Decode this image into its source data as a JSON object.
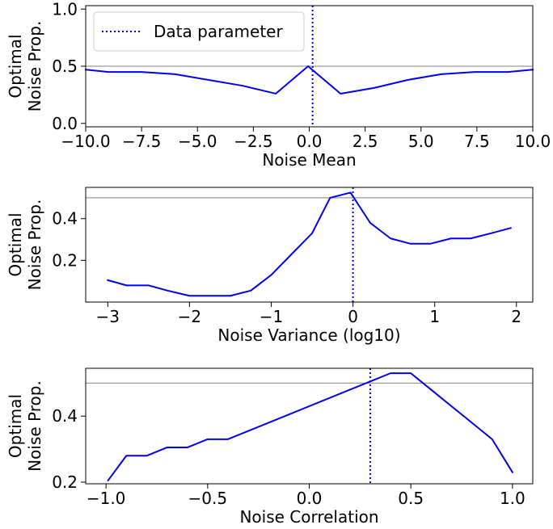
{
  "chart_data": [
    {
      "type": "line",
      "xlabel": "Noise Mean",
      "ylabel_lines": [
        "Optimal",
        "Noise Prop."
      ],
      "xlim": [
        -10,
        10
      ],
      "ylim": [
        -0.03,
        1.03
      ],
      "xticks": [
        -10,
        -7.5,
        -5,
        -2.5,
        0,
        2.5,
        5,
        7.5,
        10
      ],
      "xtick_labels": [
        "−10.0",
        "−7.5",
        "−5.0",
        "−2.5",
        "0.0",
        "2.5",
        "5.0",
        "7.5",
        "10.0"
      ],
      "yticks": [
        0,
        0.5,
        1
      ],
      "ytick_labels": [
        "0.0",
        "0.5",
        "1.0"
      ],
      "reference_hline": 0.5,
      "data_parameter_x": 0.15,
      "legend": {
        "label": "Data parameter",
        "position": "upper left"
      },
      "series": [
        {
          "color": "#0000ee",
          "x": [
            -10,
            -9,
            -7.5,
            -6,
            -4.5,
            -3,
            -1.5,
            -0.05,
            1.4,
            2.9,
            4.4,
            5.9,
            7.4,
            8.9,
            10
          ],
          "y": [
            0.47,
            0.45,
            0.45,
            0.43,
            0.38,
            0.33,
            0.26,
            0.5,
            0.26,
            0.31,
            0.38,
            0.43,
            0.45,
            0.45,
            0.47
          ]
        }
      ]
    },
    {
      "type": "line",
      "xlabel": "Noise Variance (log10)",
      "ylabel_lines": [
        "Optimal",
        "Noise Prop."
      ],
      "xlim": [
        -3.27,
        2.2
      ],
      "ylim": [
        0.0,
        0.55
      ],
      "xticks": [
        -3,
        -2,
        -1,
        0,
        1,
        2
      ],
      "xtick_labels": [
        "−3",
        "−2",
        "−1",
        "0",
        "1",
        "2"
      ],
      "yticks": [
        0.2,
        0.4
      ],
      "ytick_labels": [
        "0.2",
        "0.4"
      ],
      "reference_hline": 0.5,
      "data_parameter_x": 0.0,
      "series": [
        {
          "color": "#0000ee",
          "x": [
            -3.0,
            -2.77,
            -2.5,
            -2.27,
            -2.0,
            -1.75,
            -1.5,
            -1.25,
            -1.0,
            -0.75,
            -0.5,
            -0.28,
            -0.03,
            0.21,
            0.46,
            0.7,
            0.95,
            1.2,
            1.44,
            1.69,
            1.93
          ],
          "y": [
            0.105,
            0.08,
            0.08,
            0.055,
            0.03,
            0.03,
            0.03,
            0.055,
            0.13,
            0.23,
            0.33,
            0.5,
            0.525,
            0.38,
            0.305,
            0.28,
            0.28,
            0.305,
            0.305,
            0.33,
            0.355
          ]
        }
      ]
    },
    {
      "type": "line",
      "xlabel": "Noise Correlation",
      "ylabel_lines": [
        "Optimal",
        "Noise Prop."
      ],
      "xlim": [
        -1.1,
        1.1
      ],
      "ylim": [
        0.195,
        0.545
      ],
      "xticks": [
        -1,
        -0.5,
        0,
        0.5,
        1
      ],
      "xtick_labels": [
        "−1.0",
        "−0.5",
        "0.0",
        "0.5",
        "1.0"
      ],
      "yticks": [
        0.2,
        0.4
      ],
      "ytick_labels": [
        "0.2",
        "0.4"
      ],
      "reference_hline": 0.5,
      "data_parameter_x": 0.3,
      "series": [
        {
          "color": "#0000ee",
          "x": [
            -0.99,
            -0.9,
            -0.8,
            -0.7,
            -0.6,
            -0.5,
            -0.4,
            0.3,
            0.4,
            0.5,
            0.6,
            0.7,
            0.8,
            0.9,
            1.0
          ],
          "y": [
            0.205,
            0.28,
            0.28,
            0.305,
            0.305,
            0.33,
            0.33,
            0.505,
            0.53,
            0.53,
            0.48,
            0.43,
            0.38,
            0.33,
            0.23
          ]
        }
      ]
    }
  ]
}
